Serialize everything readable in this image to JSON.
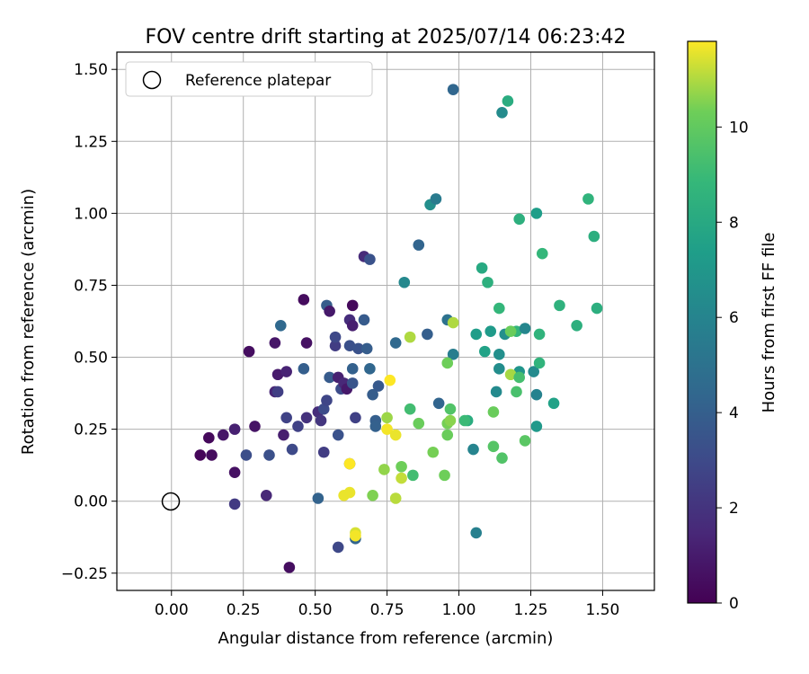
{
  "chart_data": {
    "type": "scatter",
    "title": "FOV centre drift starting at 2025/07/14 06:23:42",
    "xlabel": "Angular distance from reference (arcmin)",
    "ylabel": "Rotation from reference (arcmin)",
    "xlim": [
      -0.19,
      1.68
    ],
    "ylim": [
      -0.31,
      1.56
    ],
    "xticks": [
      0.0,
      0.25,
      0.5,
      0.75,
      1.0,
      1.25,
      1.5
    ],
    "xtick_labels": [
      "0.00",
      "0.25",
      "0.50",
      "0.75",
      "1.00",
      "1.25",
      "1.50"
    ],
    "yticks": [
      -0.25,
      0.0,
      0.25,
      0.5,
      0.75,
      1.0,
      1.25,
      1.5
    ],
    "ytick_labels": [
      "−0.25",
      "0.00",
      "0.25",
      "0.50",
      "0.75",
      "1.00",
      "1.25",
      "1.50"
    ],
    "grid": true,
    "legend": {
      "position": "upper-left",
      "entries": [
        "Reference platepar"
      ]
    },
    "reference_point": {
      "x": 0.0,
      "y": 0.0,
      "marker": "open-circle",
      "label": "Reference platepar"
    },
    "colorbar": {
      "label": "Hours from first FF file",
      "colormap": "viridis",
      "range": [
        0,
        11.8
      ],
      "ticks": [
        0,
        2,
        4,
        6,
        8,
        10
      ],
      "tick_labels": [
        "0",
        "2",
        "4",
        "6",
        "8",
        "10"
      ]
    },
    "points": [
      [
        0.1,
        0.16,
        0.2
      ],
      [
        0.13,
        0.22,
        0.3
      ],
      [
        0.14,
        0.16,
        0.4
      ],
      [
        0.18,
        0.23,
        0.8
      ],
      [
        0.22,
        0.25,
        1.2
      ],
      [
        0.22,
        0.1,
        0.6
      ],
      [
        0.22,
        -0.01,
        2.3
      ],
      [
        0.26,
        0.16,
        3.2
      ],
      [
        0.27,
        0.52,
        0.5
      ],
      [
        0.29,
        0.26,
        0.7
      ],
      [
        0.33,
        0.02,
        1.5
      ],
      [
        0.34,
        0.16,
        3.3
      ],
      [
        0.36,
        0.55,
        0.8
      ],
      [
        0.36,
        0.38,
        1.4
      ],
      [
        0.37,
        0.44,
        1.0
      ],
      [
        0.37,
        0.38,
        2.5
      ],
      [
        0.38,
        0.61,
        4.5
      ],
      [
        0.39,
        0.23,
        1.1
      ],
      [
        0.4,
        0.45,
        1.3
      ],
      [
        0.4,
        0.29,
        2.7
      ],
      [
        0.41,
        -0.23,
        0.5
      ],
      [
        0.42,
        0.18,
        3.0
      ],
      [
        0.44,
        0.26,
        2.6
      ],
      [
        0.46,
        0.7,
        0.4
      ],
      [
        0.46,
        0.46,
        4.0
      ],
      [
        0.47,
        0.29,
        1.9
      ],
      [
        0.47,
        0.55,
        0.6
      ],
      [
        0.51,
        0.01,
        4.2
      ],
      [
        0.51,
        0.31,
        1.7
      ],
      [
        0.52,
        0.28,
        2.1
      ],
      [
        0.53,
        0.17,
        2.4
      ],
      [
        0.53,
        0.32,
        3.1
      ],
      [
        0.54,
        0.35,
        2.8
      ],
      [
        0.54,
        0.68,
        3.9
      ],
      [
        0.55,
        0.66,
        0.9
      ],
      [
        0.55,
        0.43,
        3.8
      ],
      [
        0.57,
        0.54,
        2.4
      ],
      [
        0.57,
        0.57,
        2.9
      ],
      [
        0.58,
        0.43,
        1.2
      ],
      [
        0.58,
        0.23,
        3.4
      ],
      [
        0.58,
        -0.16,
        2.9
      ],
      [
        0.59,
        0.39,
        3.1
      ],
      [
        0.6,
        0.41,
        1.5
      ],
      [
        0.61,
        0.39,
        0.9
      ],
      [
        0.62,
        0.13,
        3.6
      ],
      [
        0.62,
        0.54,
        3.3
      ],
      [
        0.62,
        0.63,
        1.7
      ],
      [
        0.63,
        0.61,
        1.1
      ],
      [
        0.63,
        0.41,
        3.5
      ],
      [
        0.63,
        0.46,
        4.1
      ],
      [
        0.63,
        0.68,
        0.3
      ],
      [
        0.64,
        -0.13,
        4.3
      ],
      [
        0.64,
        0.29,
        2.6
      ],
      [
        0.65,
        0.53,
        3.4
      ],
      [
        0.67,
        0.63,
        3.8
      ],
      [
        0.67,
        0.85,
        1.6
      ],
      [
        0.68,
        0.53,
        3.9
      ],
      [
        0.69,
        0.46,
        4.4
      ],
      [
        0.69,
        0.84,
        3.4
      ],
      [
        0.7,
        0.37,
        3.9
      ],
      [
        0.71,
        0.28,
        4.0
      ],
      [
        0.71,
        0.26,
        4.1
      ],
      [
        0.72,
        0.4,
        3.7
      ],
      [
        0.78,
        0.55,
        4.5
      ],
      [
        0.81,
        0.76,
        6.2
      ],
      [
        0.86,
        0.89,
        4.3
      ],
      [
        0.89,
        0.58,
        4.0
      ],
      [
        0.9,
        1.03,
        6.6
      ],
      [
        0.92,
        1.05,
        5.5
      ],
      [
        0.93,
        0.34,
        4.3
      ],
      [
        0.96,
        0.63,
        5.0
      ],
      [
        0.98,
        0.51,
        5.6
      ],
      [
        0.98,
        1.43,
        4.4
      ],
      [
        1.03,
        0.28,
        8.2
      ],
      [
        1.05,
        0.18,
        6.0
      ],
      [
        1.06,
        -0.11,
        5.8
      ],
      [
        1.06,
        0.58,
        7.3
      ],
      [
        1.08,
        0.81,
        8.0
      ],
      [
        1.09,
        0.52,
        7.6
      ],
      [
        1.1,
        0.76,
        8.4
      ],
      [
        1.11,
        0.59,
        7.2
      ],
      [
        1.13,
        0.38,
        6.3
      ],
      [
        1.14,
        0.51,
        6.6
      ],
      [
        1.14,
        0.46,
        6.5
      ],
      [
        1.14,
        0.67,
        8.8
      ],
      [
        1.15,
        1.35,
        6.4
      ],
      [
        1.16,
        0.58,
        6.6
      ],
      [
        1.17,
        1.39,
        8.2
      ],
      [
        1.2,
        0.59,
        8.7
      ],
      [
        1.21,
        0.98,
        8.4
      ],
      [
        1.21,
        0.45,
        6.9
      ],
      [
        1.23,
        0.6,
        6.1
      ],
      [
        1.26,
        0.45,
        6.3
      ],
      [
        1.27,
        1.0,
        7.4
      ],
      [
        1.27,
        0.37,
        5.9
      ],
      [
        1.27,
        0.26,
        7.1
      ],
      [
        1.28,
        0.58,
        8.6
      ],
      [
        1.28,
        0.48,
        8.6
      ],
      [
        1.29,
        0.86,
        8.8
      ],
      [
        1.33,
        0.34,
        7.6
      ],
      [
        1.35,
        0.68,
        8.5
      ],
      [
        1.41,
        0.61,
        8.4
      ],
      [
        1.45,
        1.05,
        8.6
      ],
      [
        1.47,
        0.92,
        8.3
      ],
      [
        1.48,
        0.67,
        8.3
      ],
      [
        1.18,
        0.44,
        10.9
      ],
      [
        1.21,
        0.43,
        9.3
      ],
      [
        1.2,
        0.38,
        9.4
      ],
      [
        1.23,
        0.21,
        9.8
      ],
      [
        1.15,
        0.15,
        9.6
      ],
      [
        1.12,
        0.19,
        9.7
      ],
      [
        1.12,
        0.31,
        10.2
      ],
      [
        1.18,
        0.59,
        10.2
      ],
      [
        0.62,
        0.13,
        11.8
      ],
      [
        0.6,
        0.02,
        11.6
      ],
      [
        0.62,
        0.03,
        11.6
      ],
      [
        0.64,
        -0.11,
        11.4
      ],
      [
        0.64,
        -0.12,
        11.7
      ],
      [
        0.7,
        0.02,
        10.5
      ],
      [
        0.74,
        0.11,
        10.7
      ],
      [
        0.75,
        0.29,
        10.8
      ],
      [
        0.75,
        0.25,
        11.7
      ],
      [
        0.76,
        0.42,
        11.8
      ],
      [
        0.78,
        0.23,
        11.6
      ],
      [
        0.78,
        0.01,
        11.1
      ],
      [
        0.8,
        0.08,
        11.2
      ],
      [
        0.8,
        0.12,
        10.3
      ],
      [
        0.83,
        0.32,
        9.2
      ],
      [
        0.83,
        0.57,
        11.0
      ],
      [
        0.84,
        0.09,
        9.2
      ],
      [
        0.86,
        0.27,
        10.2
      ],
      [
        0.91,
        0.17,
        10.4
      ],
      [
        0.95,
        0.09,
        10.3
      ],
      [
        0.96,
        0.27,
        10.4
      ],
      [
        0.96,
        0.48,
        10.3
      ],
      [
        0.96,
        0.23,
        10.2
      ],
      [
        0.97,
        0.32,
        9.6
      ],
      [
        0.97,
        0.28,
        10.6
      ],
      [
        0.98,
        0.62,
        11.0
      ],
      [
        1.02,
        0.28,
        9.0
      ]
    ]
  }
}
